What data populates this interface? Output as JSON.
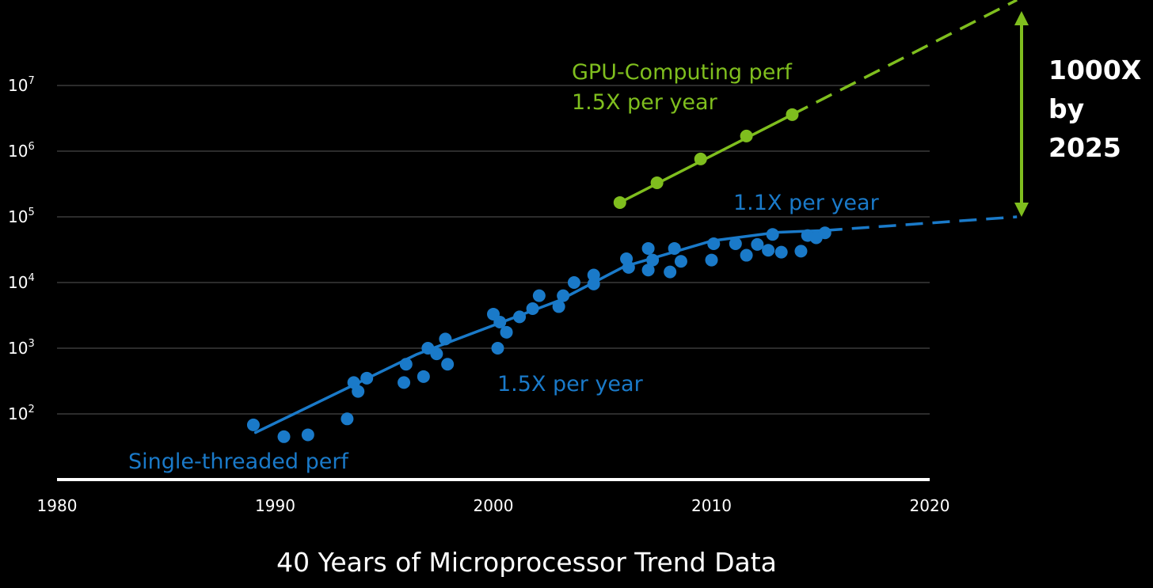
{
  "chart_data": {
    "type": "scatter",
    "title": "40 Years of Microprocessor Trend Data",
    "x_axis": {
      "ticks": [
        1980,
        1990,
        2000,
        2010,
        2020
      ],
      "range": [
        1980,
        2020
      ]
    },
    "y_axis": {
      "scale": "log",
      "range": [
        10,
        10000000
      ],
      "ticks": [
        {
          "base": "10",
          "exp": "2",
          "value": 100
        },
        {
          "base": "10",
          "exp": "3",
          "value": 1000
        },
        {
          "base": "10",
          "exp": "4",
          "value": 10000
        },
        {
          "base": "10",
          "exp": "5",
          "value": 100000
        },
        {
          "base": "10",
          "exp": "6",
          "value": 1000000
        },
        {
          "base": "10",
          "exp": "7",
          "value": 10000000
        }
      ],
      "grid": true
    },
    "series": [
      {
        "name": "Single-threaded perf",
        "color": "#1a7ac9",
        "points": [
          [
            1989,
            68
          ],
          [
            1990.4,
            45
          ],
          [
            1991.5,
            48
          ],
          [
            1993.3,
            84
          ],
          [
            1993.6,
            300
          ],
          [
            1993.8,
            220
          ],
          [
            1994.2,
            350
          ],
          [
            1995.9,
            300
          ],
          [
            1996.0,
            570
          ],
          [
            1996.8,
            370
          ],
          [
            1997.0,
            1000
          ],
          [
            1997.4,
            820
          ],
          [
            1997.8,
            1380
          ],
          [
            1997.9,
            570
          ],
          [
            2000.0,
            3300
          ],
          [
            2000.2,
            1000
          ],
          [
            2000.3,
            2500
          ],
          [
            2000.6,
            1750
          ],
          [
            2001.2,
            3000
          ],
          [
            2001.8,
            4000
          ],
          [
            2002.1,
            6300
          ],
          [
            2003.0,
            4300
          ],
          [
            2003.2,
            6300
          ],
          [
            2003.7,
            10000
          ],
          [
            2004.6,
            13000
          ],
          [
            2004.6,
            9500
          ],
          [
            2006.1,
            23000
          ],
          [
            2006.2,
            17000
          ],
          [
            2007.1,
            33000
          ],
          [
            2007.1,
            15500
          ],
          [
            2007.3,
            22000
          ],
          [
            2008.1,
            14500
          ],
          [
            2008.3,
            33000
          ],
          [
            2008.6,
            21000
          ],
          [
            2010.0,
            22000
          ],
          [
            2010.1,
            39000
          ],
          [
            2011.1,
            39000
          ],
          [
            2011.6,
            26000
          ],
          [
            2012.1,
            38000
          ],
          [
            2012.6,
            31000
          ],
          [
            2012.8,
            54000
          ],
          [
            2013.2,
            29000
          ],
          [
            2014.1,
            30000
          ],
          [
            2014.4,
            52000
          ],
          [
            2014.8,
            48000
          ],
          [
            2015.2,
            57000
          ]
        ],
        "trend": [
          [
            1989.1,
            52
          ],
          [
            1996.5,
            810
          ],
          [
            2003.0,
            5300
          ],
          [
            2006.0,
            17500
          ],
          [
            2010.0,
            43000
          ],
          [
            2013.0,
            58000
          ],
          [
            2015.2,
            62000
          ]
        ],
        "projection": [
          [
            2015.2,
            62000
          ],
          [
            2024,
            100000
          ]
        ],
        "labels": {
          "name": "Single-threaded perf",
          "rate_early": "1.5X per year",
          "rate_late": "1.1X per year"
        }
      },
      {
        "name": "GPU-Computing perf",
        "color": "#7fbe1e",
        "points": [
          [
            2005.8,
            165000
          ],
          [
            2007.5,
            330000
          ],
          [
            2009.5,
            760000
          ],
          [
            2011.6,
            1700000
          ],
          [
            2013.7,
            3600000
          ]
        ],
        "trend": [
          [
            2005.8,
            165000
          ],
          [
            2013.7,
            3600000
          ]
        ],
        "projection": [
          [
            2013.7,
            3600000
          ],
          [
            2024,
            200000000
          ]
        ],
        "labels": {
          "name": "GPU-Computing perf",
          "rate": "1.5X per year"
        }
      }
    ],
    "annotation": {
      "line1": "1000X",
      "line2": "by",
      "line3": "2025",
      "color": "#7fbe1e"
    }
  }
}
